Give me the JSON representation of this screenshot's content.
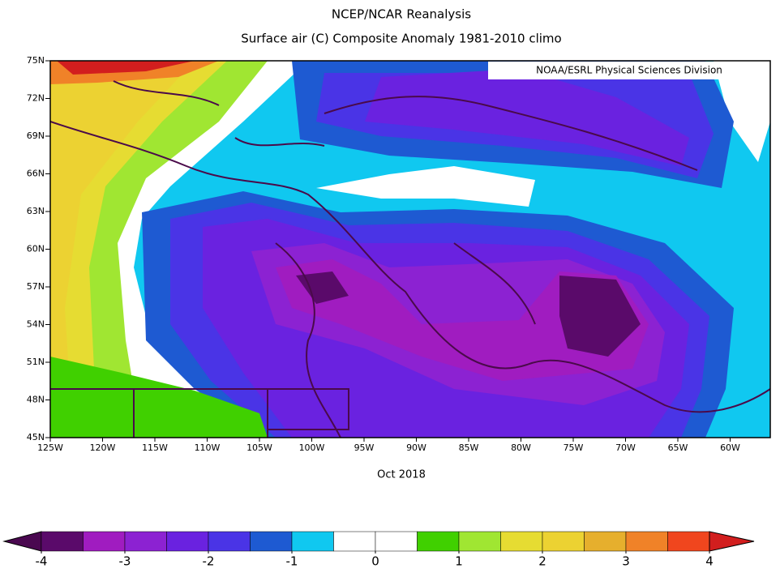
{
  "title": "NCEP/NCAR Reanalysis",
  "subtitle": "Surface air (C) Composite Anomaly 1981-2010 climo",
  "credit": "NOAA/ESRL Physical Sciences Division",
  "date": "Oct 2018",
  "lat_labels": [
    "75N",
    "72N",
    "69N",
    "66N",
    "63N",
    "60N",
    "57N",
    "54N",
    "51N",
    "48N",
    "45N"
  ],
  "lon_labels": [
    "125W",
    "120W",
    "115W",
    "110W",
    "105W",
    "100W",
    "95W",
    "90W",
    "85W",
    "80W",
    "75W",
    "70W",
    "65W",
    "60W"
  ],
  "colorbar": {
    "ticks": [
      -4,
      -3,
      -2,
      -1,
      0,
      1,
      2,
      3,
      4
    ],
    "colors": [
      "#4a0850",
      "#5a0a6a",
      "#a01cc0",
      "#8c22d2",
      "#6a22e0",
      "#4a34e6",
      "#1e5ad2",
      "#10c8f0",
      "#ffffff",
      "#ffffff",
      "#40d000",
      "#a0e632",
      "#e6dc32",
      "#ecd232",
      "#e6af2d",
      "#f08228",
      "#f0461e",
      "#d21e1e"
    ]
  }
}
